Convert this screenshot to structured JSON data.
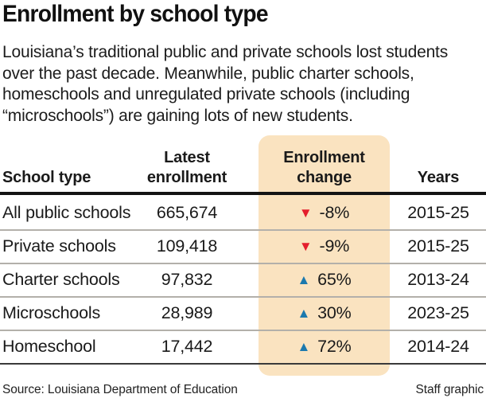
{
  "title": "Enrollment by school type",
  "intro_lines": [
    "Louisiana’s traditional public and private schools lost students",
    "over the past decade. Meanwhile, public charter schools,",
    "homeschools and unregulated private schools (including",
    "“microschools”) are gaining lots of new students."
  ],
  "header": {
    "school_type": "School type",
    "latest_enrollment": "Latest\nenrollment",
    "enrollment_change": "Enrollment\nchange",
    "years": "Years"
  },
  "chart_data": {
    "type": "table",
    "title": "Enrollment by school type",
    "columns": [
      "School type",
      "Latest enrollment",
      "Enrollment change",
      "Years"
    ],
    "rows": [
      {
        "school_type": "All public schools",
        "latest_enrollment": "665,674",
        "change": "-8%",
        "change_direction": "down",
        "years": "2015-25"
      },
      {
        "school_type": "Private schools",
        "latest_enrollment": "109,418",
        "change": "-9%",
        "change_direction": "down",
        "years": "2015-25"
      },
      {
        "school_type": "Charter schools",
        "latest_enrollment": "97,832",
        "change": "65%",
        "change_direction": "up",
        "years": "2013-24"
      },
      {
        "school_type": "Microschools",
        "latest_enrollment": "28,989",
        "change": "30%",
        "change_direction": "up",
        "years": "2023-25"
      },
      {
        "school_type": "Homeschool",
        "latest_enrollment": "17,442",
        "change": "72%",
        "change_direction": "up",
        "years": "2014-24"
      }
    ]
  },
  "icons": {
    "up_triangle": "▲",
    "down_triangle": "▼"
  },
  "colors": {
    "highlight_bg": "#fae3c0",
    "down_red": "#e41e2d",
    "up_blue": "#1b79ae",
    "ink": "#1a1a1a"
  },
  "footer": {
    "source": "Source: Louisiana Department of Education",
    "credit": "Staff graphic"
  }
}
